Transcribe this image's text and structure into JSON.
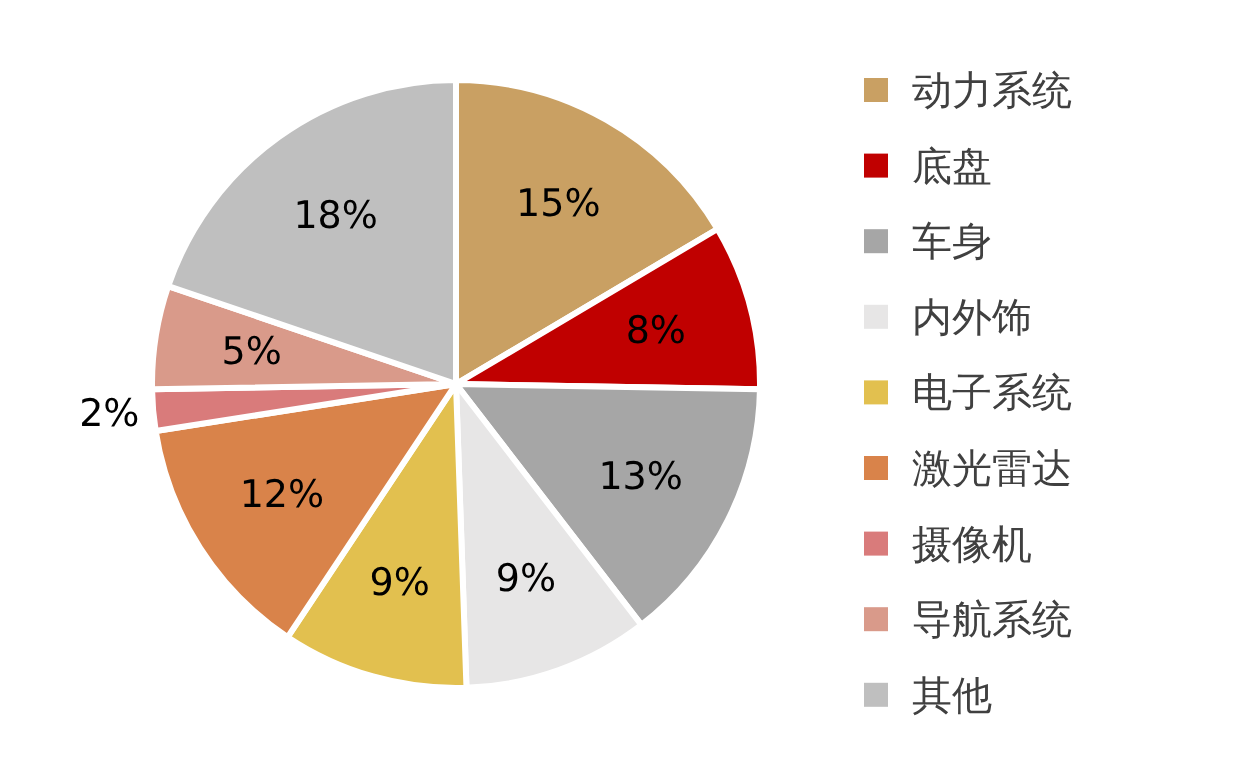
{
  "chart_data": {
    "type": "pie",
    "categories": [
      "动力系统",
      "底盘",
      "车身",
      "内外饰",
      "电子系统",
      "激光雷达",
      "摄像机",
      "导航系统",
      "其他"
    ],
    "values": [
      15,
      8,
      13,
      9,
      9,
      12,
      2,
      5,
      18
    ],
    "colors": [
      "#c9a063",
      "#c00000",
      "#a6a6a6",
      "#e7e6e6",
      "#e2c04f",
      "#d9834a",
      "#d97b7b",
      "#d99a8a",
      "#bfbfbf"
    ],
    "value_labels": [
      "15%",
      "8%",
      "13%",
      "9%",
      "9%",
      "12%",
      "2%",
      "5%",
      "18%"
    ],
    "legend": "right"
  }
}
